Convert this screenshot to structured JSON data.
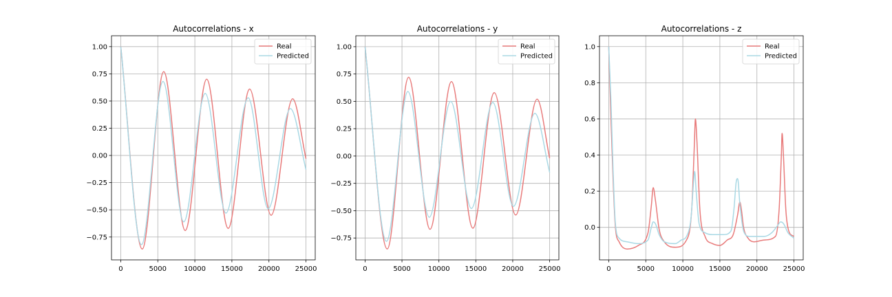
{
  "colors": {
    "real": "#e87a7a",
    "predicted": "#a8d8e4"
  },
  "chart_data": [
    {
      "type": "line",
      "title": "Autocorrelations - x",
      "xlim": [
        -1250,
        26250
      ],
      "ylim": [
        -0.96,
        1.1
      ],
      "xticks": [
        0,
        5000,
        10000,
        15000,
        20000,
        25000
      ],
      "xtick_labels": [
        "0",
        "5000",
        "10000",
        "15000",
        "20000",
        "25000"
      ],
      "yticks": [
        -0.75,
        -0.5,
        -0.25,
        0,
        0.25,
        0.5,
        0.75,
        1.0
      ],
      "ytick_labels": [
        "−0.75",
        "−0.50",
        "−0.25",
        "0.00",
        "0.25",
        "0.50",
        "0.75",
        "1.00"
      ],
      "grid": true,
      "legend": "top-right",
      "series": [
        {
          "name": "Real",
          "x": [
            0,
            2900,
            5800,
            8700,
            11600,
            14500,
            17400,
            20300,
            23200,
            25000
          ],
          "y": [
            1.0,
            -0.86,
            0.77,
            -0.69,
            0.7,
            -0.67,
            0.61,
            -0.55,
            0.52,
            -0.03
          ]
        },
        {
          "name": "Predicted",
          "x": [
            0,
            2800,
            5700,
            8500,
            11400,
            14200,
            17200,
            19900,
            22900,
            25000
          ],
          "y": [
            1.0,
            -0.82,
            0.68,
            -0.61,
            0.57,
            -0.53,
            0.53,
            -0.49,
            0.43,
            -0.13
          ]
        }
      ]
    },
    {
      "type": "line",
      "title": "Autocorrelations - y",
      "xlim": [
        -1250,
        26250
      ],
      "ylim": [
        -0.95,
        1.1
      ],
      "xticks": [
        0,
        5000,
        10000,
        15000,
        20000,
        25000
      ],
      "xtick_labels": [
        "0",
        "5000",
        "10000",
        "15000",
        "20000",
        "25000"
      ],
      "yticks": [
        -0.75,
        -0.5,
        -0.25,
        0,
        0.25,
        0.5,
        0.75,
        1.0
      ],
      "ytick_labels": [
        "−0.75",
        "−0.50",
        "−0.25",
        "0.00",
        "0.25",
        "0.50",
        "0.75",
        "1.00"
      ],
      "grid": true,
      "legend": "top-right",
      "series": [
        {
          "name": "Real",
          "x": [
            0,
            3000,
            5900,
            8800,
            11700,
            14600,
            17500,
            20400,
            23300,
            25000
          ],
          "y": [
            1.0,
            -0.85,
            0.72,
            -0.67,
            0.68,
            -0.66,
            0.58,
            -0.54,
            0.52,
            -0.02
          ]
        },
        {
          "name": "Predicted",
          "x": [
            0,
            2900,
            5800,
            8700,
            11600,
            14400,
            17300,
            20100,
            23000,
            25000
          ],
          "y": [
            1.0,
            -0.78,
            0.59,
            -0.56,
            0.5,
            -0.48,
            0.49,
            -0.46,
            0.39,
            -0.15
          ]
        }
      ]
    },
    {
      "type": "line",
      "title": "Autocorrelations - z",
      "xlim": [
        -1250,
        26250
      ],
      "ylim": [
        -0.18,
        1.06
      ],
      "xticks": [
        0,
        5000,
        10000,
        15000,
        20000,
        25000
      ],
      "xtick_labels": [
        "0",
        "5000",
        "10000",
        "15000",
        "20000",
        "25000"
      ],
      "yticks": [
        0.0,
        0.2,
        0.4,
        0.6,
        0.8,
        1.0
      ],
      "ytick_labels": [
        "0.0",
        "0.2",
        "0.4",
        "0.6",
        "0.8",
        "1.0"
      ],
      "grid": true,
      "legend": "top-right",
      "series": [
        {
          "name": "Real",
          "x": [
            0,
            300,
            600,
            900,
            1400,
            2500,
            4000,
            5300,
            5750,
            6000,
            6300,
            6800,
            7500,
            9000,
            10500,
            11200,
            11550,
            11700,
            11900,
            12300,
            13000,
            14000,
            15000,
            16000,
            16800,
            17400,
            17700,
            17900,
            18200,
            18800,
            19600,
            21000,
            22500,
            23000,
            23300,
            23400,
            23600,
            23900,
            24300,
            25000
          ],
          "y": [
            1.0,
            0.6,
            0.25,
            0.0,
            -0.08,
            -0.12,
            -0.1,
            -0.03,
            0.12,
            0.22,
            0.15,
            -0.01,
            -0.08,
            -0.11,
            -0.07,
            0.1,
            0.45,
            0.6,
            0.48,
            0.1,
            -0.05,
            -0.09,
            -0.1,
            -0.07,
            -0.04,
            0.07,
            0.14,
            0.1,
            0.0,
            -0.06,
            -0.08,
            -0.07,
            -0.05,
            0.1,
            0.4,
            0.52,
            0.38,
            0.1,
            -0.02,
            -0.05
          ]
        },
        {
          "name": "Predicted",
          "x": [
            0,
            300,
            600,
            900,
            1400,
            2500,
            4000,
            5300,
            5750,
            6000,
            6300,
            6800,
            7500,
            9000,
            9800,
            10500,
            11100,
            11450,
            11600,
            11800,
            12200,
            13000,
            14000,
            15500,
            16500,
            16900,
            17200,
            17400,
            17700,
            18200,
            19000,
            20000,
            21000,
            22000,
            22800,
            23200,
            23600,
            24200,
            25000
          ],
          "y": [
            1.0,
            0.7,
            0.3,
            0.02,
            -0.06,
            -0.08,
            -0.09,
            -0.07,
            0.0,
            0.03,
            0.02,
            -0.04,
            -0.08,
            -0.09,
            -0.07,
            -0.05,
            0.05,
            0.25,
            0.31,
            0.2,
            0.02,
            -0.03,
            -0.04,
            -0.04,
            -0.02,
            0.1,
            0.25,
            0.27,
            0.13,
            -0.02,
            -0.05,
            -0.05,
            -0.05,
            -0.03,
            0.01,
            0.03,
            0.02,
            -0.03,
            -0.06
          ]
        }
      ]
    }
  ]
}
